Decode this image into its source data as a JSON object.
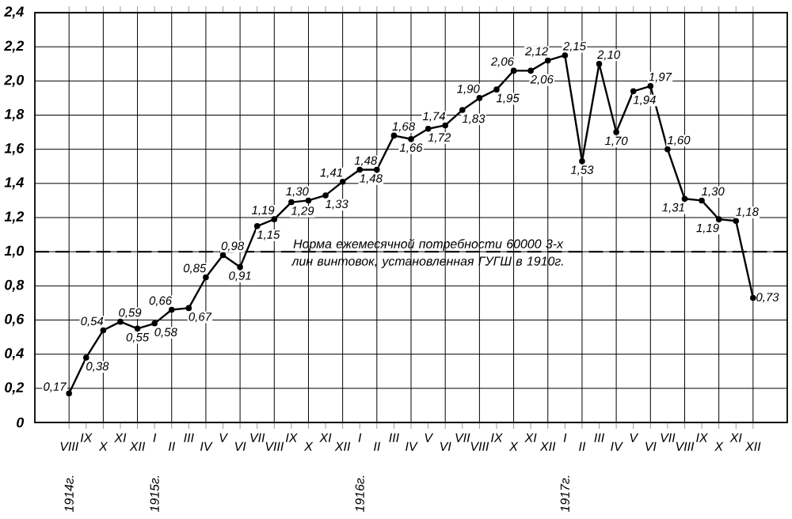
{
  "chart_data": {
    "type": "line",
    "categories": [
      "VIII",
      "IX",
      "X",
      "XI",
      "XII",
      "I",
      "II",
      "III",
      "IV",
      "V",
      "VI",
      "VII",
      "VIII",
      "IX",
      "X",
      "XI",
      "XII",
      "I",
      "II",
      "III",
      "IV",
      "V",
      "VI",
      "VII",
      "VIII",
      "IX",
      "X",
      "XI",
      "XII",
      "I",
      "II",
      "III",
      "IV",
      "V",
      "VI",
      "VII",
      "VIII",
      "IX",
      "X",
      "XI",
      "XII"
    ],
    "values": [
      0.17,
      0.38,
      0.54,
      0.59,
      0.55,
      0.58,
      0.66,
      0.67,
      0.85,
      0.98,
      0.91,
      1.15,
      1.19,
      1.29,
      1.3,
      1.33,
      1.41,
      1.48,
      1.48,
      1.68,
      1.66,
      1.72,
      1.74,
      1.83,
      1.9,
      1.95,
      2.06,
      2.06,
      2.12,
      2.15,
      1.53,
      2.1,
      1.7,
      1.94,
      1.97,
      1.6,
      1.31,
      1.3,
      1.19,
      1.18,
      0.73
    ],
    "value_labels": [
      "0,17",
      "0,38",
      "0,54",
      "0,59",
      "0,55",
      "0,58",
      "0,66",
      "0,67",
      "0,85",
      "0,98",
      "0,91",
      "1,15",
      "1,19",
      "1,29",
      "1,30",
      "1,33",
      "1,41",
      "1,48",
      "1,48",
      "1,68",
      "1,66",
      "1,72",
      "1,74",
      "1,83",
      "1,90",
      "1,95",
      "2,06",
      "2,06",
      "2,12",
      "2,15",
      "1,53",
      "2,10",
      "1,70",
      "1,94",
      "1,97",
      "1,60",
      "1,31",
      "1,30",
      "1,19",
      "1,18",
      "0,73"
    ],
    "color": "#000000",
    "marker": "circle",
    "line_style": "solid",
    "grid": true,
    "ylim": [
      0,
      2.4
    ],
    "yticks": [
      0,
      {
        "value": 0.2,
        "label": "0,2"
      },
      {
        "value": 0.4,
        "label": "0,4"
      },
      {
        "value": 0.6,
        "label": "0,6"
      },
      {
        "value": 0.8,
        "label": "0,8"
      },
      {
        "value": 1.0,
        "label": "1,0"
      },
      {
        "value": 1.2,
        "label": "1,2"
      },
      {
        "value": 1.4,
        "label": "1,4"
      },
      {
        "value": 1.6,
        "label": "1,6"
      },
      {
        "value": 1.8,
        "label": "1,8"
      },
      {
        "value": 2.0,
        "label": "2,0"
      },
      {
        "value": 2.2,
        "label": "2,2"
      },
      {
        "value": 2.4,
        "label": "2,4"
      }
    ],
    "ref_lines": [
      {
        "axis": "y",
        "value": 1.0,
        "label": "Норма ежемесячной потребности 60000 3-х лин винтовок, установленная ГУГШ в 1910г.",
        "line_style": "dashed"
      }
    ],
    "annotations": [
      "1914г.",
      "1915г.",
      "1916г.",
      "1917г."
    ]
  }
}
